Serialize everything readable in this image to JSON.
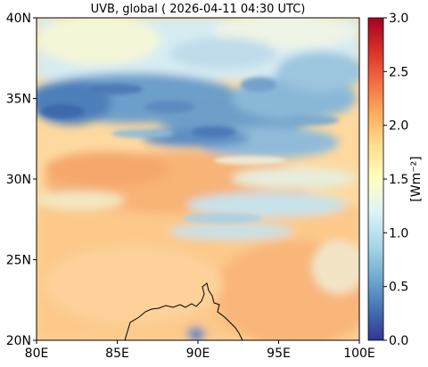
{
  "title": "UVB, global ( 2026-04-11 04:30 UTC)",
  "map": {
    "lon_range": [
      80,
      100
    ],
    "lat_range": [
      20,
      40
    ],
    "x_ticks": [
      "80E",
      "85E",
      "90E",
      "95E",
      "100E"
    ],
    "y_ticks": [
      "20N",
      "25N",
      "30N",
      "35N",
      "40N"
    ],
    "field": "UVB irradiance",
    "coastline": true
  },
  "colorbar": {
    "label": "[Wm⁻²]",
    "range": [
      0.0,
      3.0
    ],
    "ticks": [
      "0.0",
      "0.5",
      "1.0",
      "1.5",
      "2.0",
      "2.5",
      "3.0"
    ],
    "colormap": "RdYlBu_r",
    "colors": [
      "#313695",
      "#4575b4",
      "#74add1",
      "#abd9e9",
      "#e0f3f8",
      "#ffffbf",
      "#fee090",
      "#fdae61",
      "#f46d43",
      "#d73027",
      "#a50026"
    ]
  }
}
